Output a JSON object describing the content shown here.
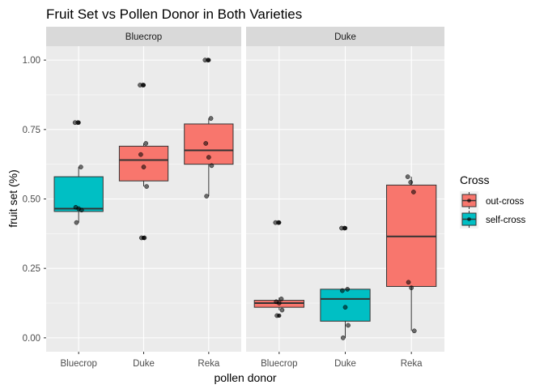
{
  "chart_data": {
    "type": "box",
    "title": "Fruit Set vs Pollen Donor in Both Varieties",
    "xlabel": "pollen donor",
    "ylabel": "fruit set (%)",
    "ylim": [
      -0.05,
      1.05
    ],
    "yticks": [
      0.0,
      0.25,
      0.5,
      0.75,
      1.0
    ],
    "ytick_labels": [
      "0.00",
      "0.25",
      "0.50",
      "0.75",
      "1.00"
    ],
    "categories": [
      "Bluecrop",
      "Duke",
      "Reka"
    ],
    "legend": {
      "title": "Cross",
      "position": "right",
      "entries": [
        {
          "label": "out-cross",
          "color": "#F8766D"
        },
        {
          "label": "self-cross",
          "color": "#00BFC4"
        }
      ]
    },
    "panels": [
      {
        "label": "Bluecrop",
        "boxes": [
          {
            "category": "Bluecrop",
            "cross": "self-cross",
            "min": 0.415,
            "q1": 0.455,
            "median": 0.465,
            "q3": 0.58,
            "max": 0.615,
            "outliers": [
              0.775
            ],
            "points": [
              0.775,
              0.775,
              0.615,
              0.47,
              0.465,
              0.46,
              0.415
            ]
          },
          {
            "category": "Duke",
            "cross": "out-cross",
            "min": 0.545,
            "q1": 0.565,
            "median": 0.64,
            "q3": 0.69,
            "max": 0.7,
            "outliers": [
              0.91,
              0.36
            ],
            "points": [
              0.91,
              0.91,
              0.7,
              0.66,
              0.615,
              0.545,
              0.36,
              0.36
            ]
          },
          {
            "category": "Reka",
            "cross": "out-cross",
            "min": 0.51,
            "q1": 0.625,
            "median": 0.675,
            "q3": 0.77,
            "max": 0.79,
            "outliers": [
              1.0
            ],
            "points": [
              1.0,
              1.0,
              0.79,
              0.7,
              0.65,
              0.62,
              0.51
            ]
          }
        ]
      },
      {
        "label": "Duke",
        "boxes": [
          {
            "category": "Bluecrop",
            "cross": "out-cross",
            "min": 0.1,
            "q1": 0.11,
            "median": 0.125,
            "q3": 0.135,
            "max": 0.145,
            "outliers": [
              0.415,
              0.08
            ],
            "points": [
              0.415,
              0.415,
              0.14,
              0.13,
              0.125,
              0.1,
              0.08
            ]
          },
          {
            "category": "Duke",
            "cross": "self-cross",
            "min": 0.0,
            "q1": 0.06,
            "median": 0.14,
            "q3": 0.175,
            "max": 0.175,
            "outliers": [
              0.395
            ],
            "points": [
              0.395,
              0.395,
              0.175,
              0.17,
              0.11,
              0.045,
              0.0
            ]
          },
          {
            "category": "Reka",
            "cross": "out-cross",
            "min": 0.025,
            "q1": 0.185,
            "median": 0.365,
            "q3": 0.55,
            "max": 0.58,
            "outliers": [],
            "points": [
              0.58,
              0.56,
              0.525,
              0.2,
              0.18,
              0.025
            ]
          }
        ]
      }
    ]
  }
}
